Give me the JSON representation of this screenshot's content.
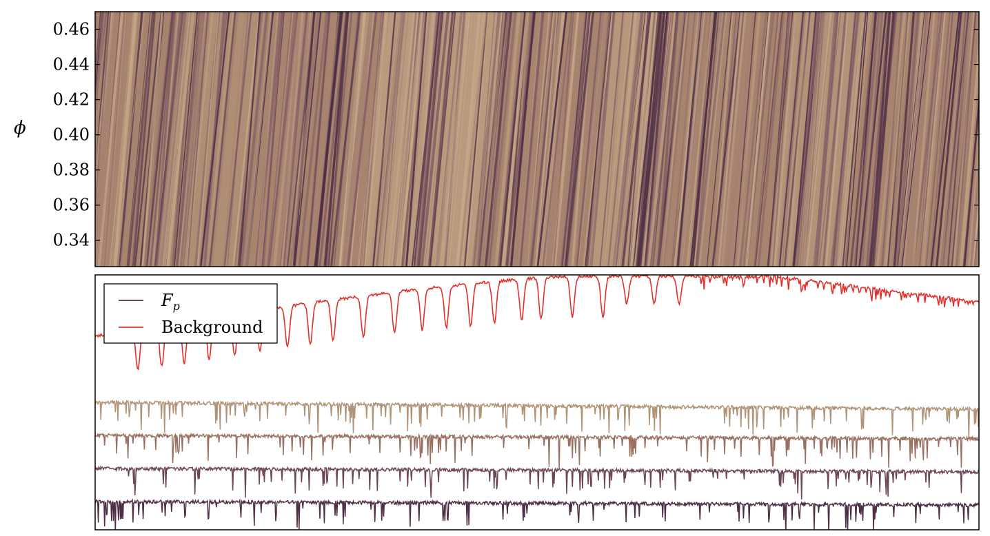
{
  "chart_data": [
    {
      "type": "heatmap",
      "ylabel": "ϕ",
      "ylim": [
        0.325,
        0.47
      ],
      "yticks": [
        0.34,
        0.36,
        0.38,
        0.4,
        0.42,
        0.44,
        0.46
      ],
      "ytick_labels": [
        "0.34",
        "0.36",
        "0.38",
        "0.40",
        "0.42",
        "0.44",
        "0.46"
      ],
      "colormap": [
        "#4f2f45",
        "#7a5460",
        "#a57f72",
        "#c9ad8c"
      ],
      "pattern": "diagonal absorption streaks shifting to the right with increasing phase"
    },
    {
      "type": "line",
      "legend": {
        "placement": "top-left"
      },
      "series": [
        {
          "name": "F_p",
          "name_base": "F",
          "name_sub": "p",
          "color": "#4f2f45",
          "role": "legend"
        },
        {
          "name": "Background",
          "color": "#e0302a",
          "role": "legend"
        }
      ],
      "stacked_spectra_colors": [
        "#b09478",
        "#9a7062",
        "#6c4556",
        "#4f2f45"
      ],
      "axis_ticks_visible": false
    }
  ],
  "colors": {
    "background_spectrum": "#e0302a",
    "frame": "#000000"
  }
}
